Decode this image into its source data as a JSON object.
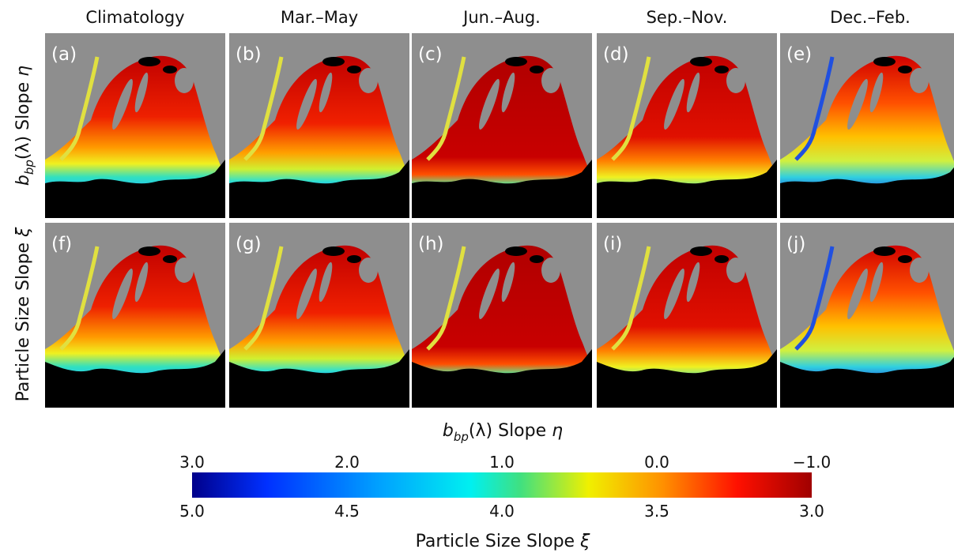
{
  "columns": [
    "Climatology",
    "Mar.–May",
    "Jun.–Aug.",
    "Sep.–Nov.",
    "Dec.–Feb."
  ],
  "rows": [
    {
      "symbol": "b",
      "subscript": "bp",
      "middle": "(λ) Slope ",
      "variable": "η"
    },
    {
      "text": "Particle Size Slope ",
      "variable": "ξ"
    }
  ],
  "panels": [
    [
      "(a)",
      "(b)",
      "(c)",
      "(d)",
      "(e)"
    ],
    [
      "(f)",
      "(g)",
      "(h)",
      "(i)",
      "(j)"
    ]
  ],
  "colorbar": {
    "top_label": {
      "symbol": "b",
      "subscript": "bp",
      "middle": "(λ) Slope ",
      "variable": "η"
    },
    "top_ticks": [
      "3.0",
      "2.0",
      "1.0",
      "0.0",
      "−1.0"
    ],
    "bottom_ticks": [
      "5.0",
      "4.5",
      "4.0",
      "3.5",
      "3.0"
    ],
    "bottom_label": {
      "text": "Particle Size Slope ",
      "variable": "ξ"
    }
  }
}
